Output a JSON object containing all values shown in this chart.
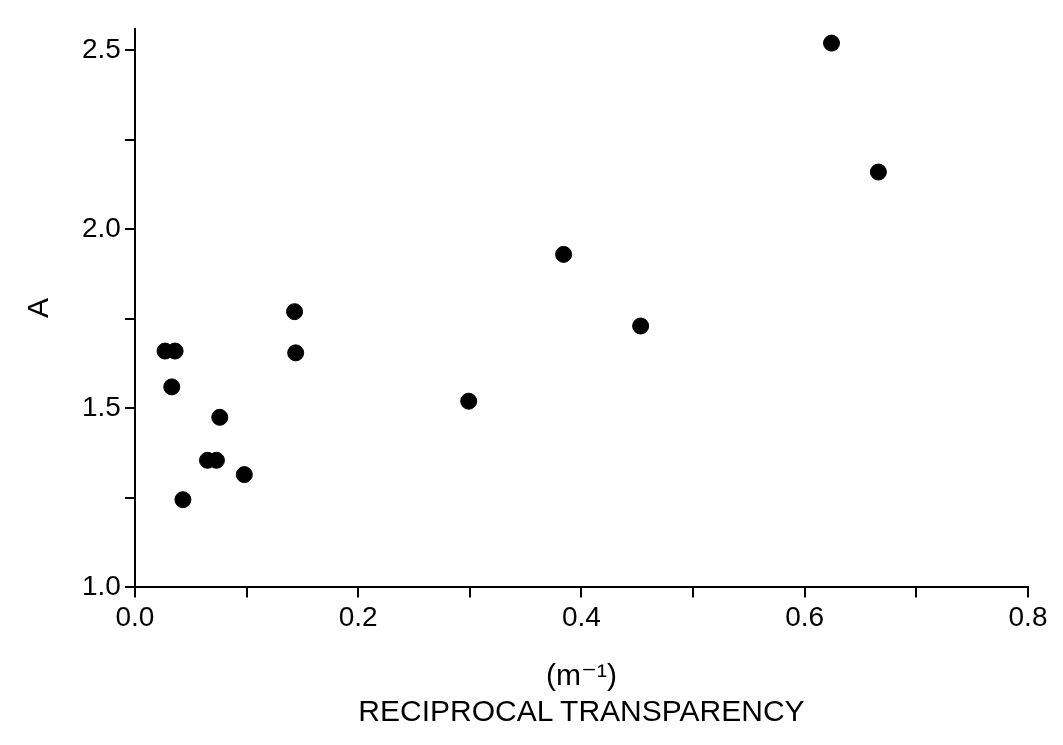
{
  "chart_data": {
    "type": "scatter",
    "xlabel": "(m⁻¹)\nRECIPROCAL TRANSPARENCY",
    "ylabel": "A",
    "x": [
      0.027,
      0.036,
      0.033,
      0.076,
      0.065,
      0.073,
      0.098,
      0.043,
      0.143,
      0.144,
      0.299,
      0.384,
      0.453,
      0.624,
      0.666
    ],
    "series": [
      {
        "color": "#000000",
        "values": [
          1.66,
          1.66,
          1.56,
          1.475,
          1.355,
          1.355,
          1.315,
          1.245,
          1.77,
          1.655,
          1.52,
          1.93,
          1.73,
          2.52,
          2.16
        ]
      }
    ],
    "xlim": [
      0,
      0.8
    ],
    "xticks": [
      {
        "value": 0,
        "label": "0.0"
      },
      {
        "value": 0.1,
        "label": null
      },
      {
        "value": 0.2,
        "label": "0.2"
      },
      {
        "value": 0.3,
        "label": null
      },
      {
        "value": 0.4,
        "label": "0.4"
      },
      {
        "value": 0.5,
        "label": null
      },
      {
        "value": 0.6,
        "label": "0.6"
      },
      {
        "value": 0.7,
        "label": null
      },
      {
        "value": 0.8,
        "label": "0.8"
      }
    ],
    "ylim": [
      1,
      2.56
    ],
    "yticks": [
      {
        "value": 1,
        "label": "1.0"
      },
      {
        "value": 1.25,
        "label": null
      },
      {
        "value": 1.5,
        "label": "1.5"
      },
      {
        "value": 1.75,
        "label": null
      },
      {
        "value": 2,
        "label": "2.0"
      },
      {
        "value": 2.25,
        "label": null
      },
      {
        "value": 2.5,
        "label": "2.5"
      }
    ],
    "grid": false,
    "legend": false,
    "marker": "circle"
  }
}
